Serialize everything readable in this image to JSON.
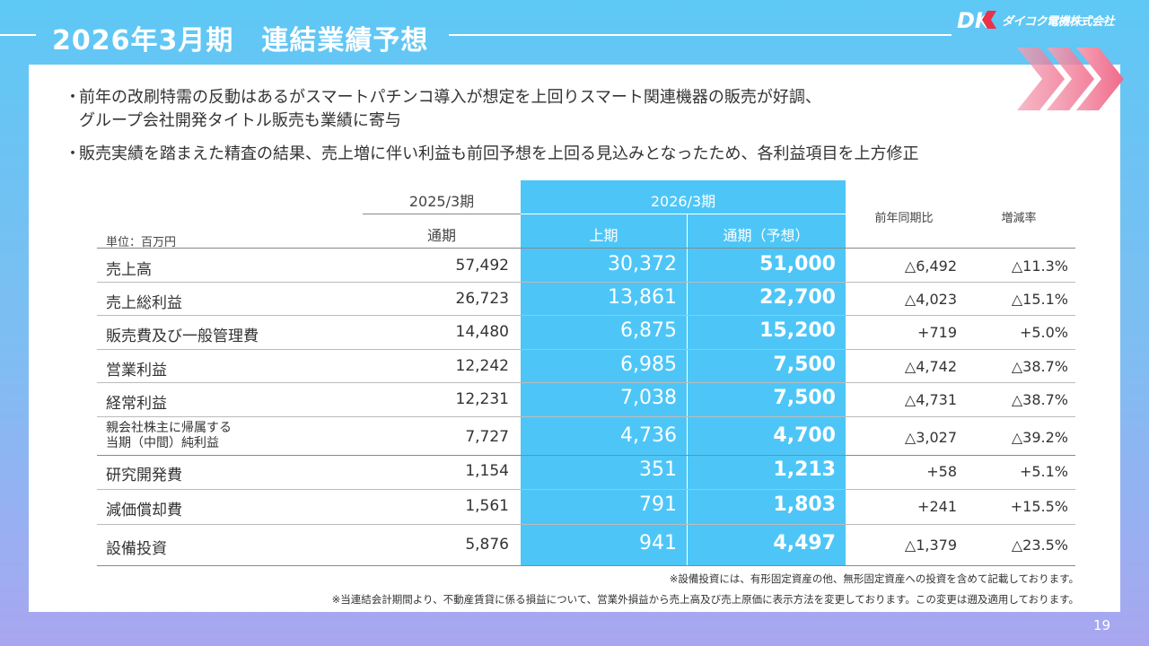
{
  "header": {
    "title": "2026年3月期　連結業績予想",
    "company": "ダイコク電機株式会社",
    "logo_mark": "DK"
  },
  "bullets": [
    [
      "前年の改刷特需の反動はあるがスマートパチンコ導入が想定を上回りスマート関連機器の販売が好調、",
      "グループ会社開発タイトル販売も業績に寄与"
    ],
    [
      "販売実績を踏まえた精査の結果、売上増に伴い利益も前回予想を上回る見込みとなったため、各利益項目を上方修正"
    ]
  ],
  "table": {
    "unit": "単位：百万円",
    "group_2025": "2025/3期",
    "group_2026": "2026/3期",
    "col_2025_fy": "通期",
    "col_2026_1h": "上期",
    "col_2026_fy": "通期（予想）",
    "col_yoy": "前年同期比",
    "col_rate": "増減率",
    "rows": [
      {
        "label": "売上高",
        "fy2025": "57,492",
        "h1_2026": "30,372",
        "fy2026": "51,000",
        "yoy": "△6,492",
        "rate": "△11.3%"
      },
      {
        "label": "売上総利益",
        "fy2025": "26,723",
        "h1_2026": "13,861",
        "fy2026": "22,700",
        "yoy": "△4,023",
        "rate": "△15.1%"
      },
      {
        "label": "販売費及び一般管理費",
        "fy2025": "14,480",
        "h1_2026": "6,875",
        "fy2026": "15,200",
        "yoy": "+719",
        "rate": "+5.0%"
      },
      {
        "label": "営業利益",
        "fy2025": "12,242",
        "h1_2026": "6,985",
        "fy2026": "7,500",
        "yoy": "△4,742",
        "rate": "△38.7%"
      },
      {
        "label": "経常利益",
        "fy2025": "12,231",
        "h1_2026": "7,038",
        "fy2026": "7,500",
        "yoy": "△4,731",
        "rate": "△38.7%"
      },
      {
        "label_line1": "親会社株主に帰属する",
        "label_line2": "当期（中間）純利益",
        "fy2025": "7,727",
        "h1_2026": "4,736",
        "fy2026": "4,700",
        "yoy": "△3,027",
        "rate": "△39.2%"
      },
      {
        "label": "研究開発費",
        "fy2025": "1,154",
        "h1_2026": "351",
        "fy2026": "1,213",
        "yoy": "+58",
        "rate": "+5.1%"
      },
      {
        "label": "減価償却費",
        "fy2025": "1,561",
        "h1_2026": "791",
        "fy2026": "1,803",
        "yoy": "+241",
        "rate": "+15.5%"
      },
      {
        "label": "設備投資",
        "fy2025": "5,876",
        "h1_2026": "941",
        "fy2026": "4,497",
        "yoy": "△1,379",
        "rate": "△23.5%"
      }
    ]
  },
  "notes": [
    "※設備投資には、有形固定資産の他、無形固定資産への投資を含めて記載しております。",
    "※当連結会計期間より、不動産賃貸に係る損益について、営業外損益から売上高及び売上原価に表示方法を変更しております。この変更は遡及適用しております。"
  ],
  "page_number": "19",
  "colors": {
    "accent": "#4dc6f7",
    "background_top": "#5ec8f4",
    "background_bottom": "#a9a6f0",
    "chevron": "#f06a8a"
  }
}
